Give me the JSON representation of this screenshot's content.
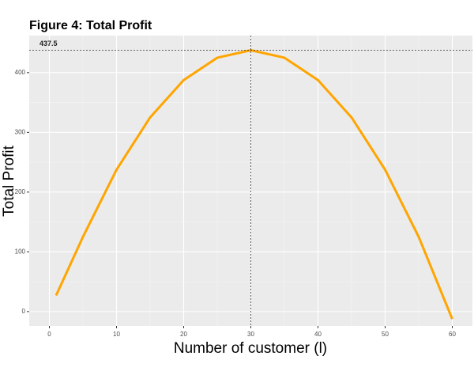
{
  "chart_data": {
    "type": "line",
    "title": "Figure 4: Total Profit",
    "xlabel": "Number of customer (l)",
    "ylabel": "Total Profit",
    "x": [
      1,
      5,
      10,
      15,
      20,
      25,
      30,
      35,
      40,
      45,
      50,
      55,
      60
    ],
    "series": [
      {
        "name": "Total Profit",
        "color": "#ffa500",
        "values": [
          27,
          125,
          237.5,
          325,
          387.5,
          425,
          437.5,
          425,
          387.5,
          325,
          237.5,
          125,
          -12.5
        ]
      }
    ],
    "hline": 437.5,
    "vline": 30,
    "xlim": [
      -3,
      63
    ],
    "ylim": [
      -24,
      462
    ],
    "xticks": [
      0,
      10,
      20,
      30,
      40,
      50,
      60
    ],
    "yticks": [
      0,
      100,
      200,
      300,
      400
    ],
    "grid": true
  }
}
